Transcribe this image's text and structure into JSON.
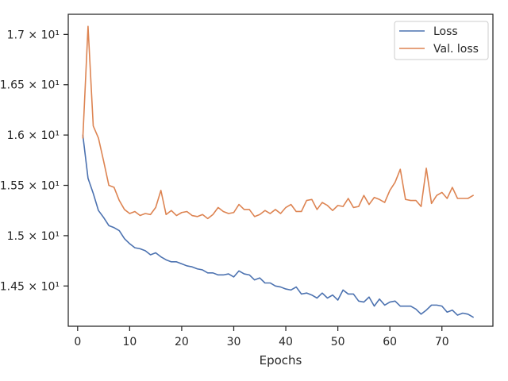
{
  "chart_data": {
    "type": "line",
    "xlabel": "Epochs",
    "ylabel": "",
    "xlim": [
      -1.8,
      79.8
    ],
    "ylim": [
      14.1,
      17.2
    ],
    "xticks": [
      0,
      10,
      20,
      30,
      40,
      50,
      60,
      70
    ],
    "xtick_labels": [
      "0",
      "10",
      "20",
      "30",
      "40",
      "50",
      "60",
      "70"
    ],
    "yticks": [
      14.5,
      15.0,
      15.5,
      16.0,
      16.5,
      17.0
    ],
    "ytick_labels": [
      "1.45 × 10¹",
      "1.5 × 10¹",
      "1.55 × 10¹",
      "1.6 × 10¹",
      "1.65 × 10¹",
      "1.7 × 10¹"
    ],
    "grid": false,
    "legend_position": "top-right",
    "x": [
      1,
      2,
      3,
      4,
      5,
      6,
      7,
      8,
      9,
      10,
      11,
      12,
      13,
      14,
      15,
      16,
      17,
      18,
      19,
      20,
      21,
      22,
      23,
      24,
      25,
      26,
      27,
      28,
      29,
      30,
      31,
      32,
      33,
      34,
      35,
      36,
      37,
      38,
      39,
      40,
      41,
      42,
      43,
      44,
      45,
      46,
      47,
      48,
      49,
      50,
      51,
      52,
      53,
      54,
      55,
      56,
      57,
      58,
      59,
      60,
      61,
      62,
      63,
      64,
      65,
      66,
      67,
      68,
      69,
      70,
      71,
      72,
      73,
      74,
      75,
      76
    ],
    "series": [
      {
        "name": "Loss",
        "color": "#4c72b0",
        "values": [
          16.0,
          15.57,
          15.42,
          15.25,
          15.18,
          15.1,
          15.08,
          15.05,
          14.97,
          14.92,
          14.88,
          14.87,
          14.85,
          14.81,
          14.83,
          14.79,
          14.76,
          14.74,
          14.74,
          14.72,
          14.7,
          14.69,
          14.67,
          14.66,
          14.63,
          14.63,
          14.61,
          14.61,
          14.62,
          14.59,
          14.65,
          14.62,
          14.61,
          14.56,
          14.58,
          14.53,
          14.53,
          14.5,
          14.49,
          14.47,
          14.46,
          14.49,
          14.42,
          14.43,
          14.41,
          14.38,
          14.43,
          14.38,
          14.41,
          14.36,
          14.46,
          14.42,
          14.42,
          14.35,
          14.34,
          14.39,
          14.3,
          14.37,
          14.31,
          14.34,
          14.35,
          14.3,
          14.3,
          14.3,
          14.27,
          14.22,
          14.26,
          14.31,
          14.31,
          14.3,
          14.24,
          14.26,
          14.21,
          14.23,
          14.22,
          14.19
        ]
      },
      {
        "name": "Val. loss",
        "color": "#dd8452",
        "values": [
          15.97,
          17.08,
          16.09,
          15.97,
          15.74,
          15.5,
          15.48,
          15.35,
          15.26,
          15.22,
          15.24,
          15.2,
          15.22,
          15.21,
          15.28,
          15.45,
          15.21,
          15.25,
          15.2,
          15.23,
          15.24,
          15.2,
          15.19,
          15.21,
          15.17,
          15.21,
          15.28,
          15.24,
          15.22,
          15.23,
          15.31,
          15.26,
          15.26,
          15.19,
          15.21,
          15.25,
          15.22,
          15.26,
          15.22,
          15.28,
          15.31,
          15.24,
          15.24,
          15.35,
          15.36,
          15.26,
          15.33,
          15.3,
          15.25,
          15.3,
          15.29,
          15.37,
          15.28,
          15.29,
          15.4,
          15.31,
          15.38,
          15.36,
          15.33,
          15.45,
          15.53,
          15.66,
          15.36,
          15.35,
          15.35,
          15.29,
          15.67,
          15.32,
          15.4,
          15.43,
          15.37,
          15.48,
          15.37,
          15.37,
          15.37,
          15.4
        ]
      }
    ]
  }
}
